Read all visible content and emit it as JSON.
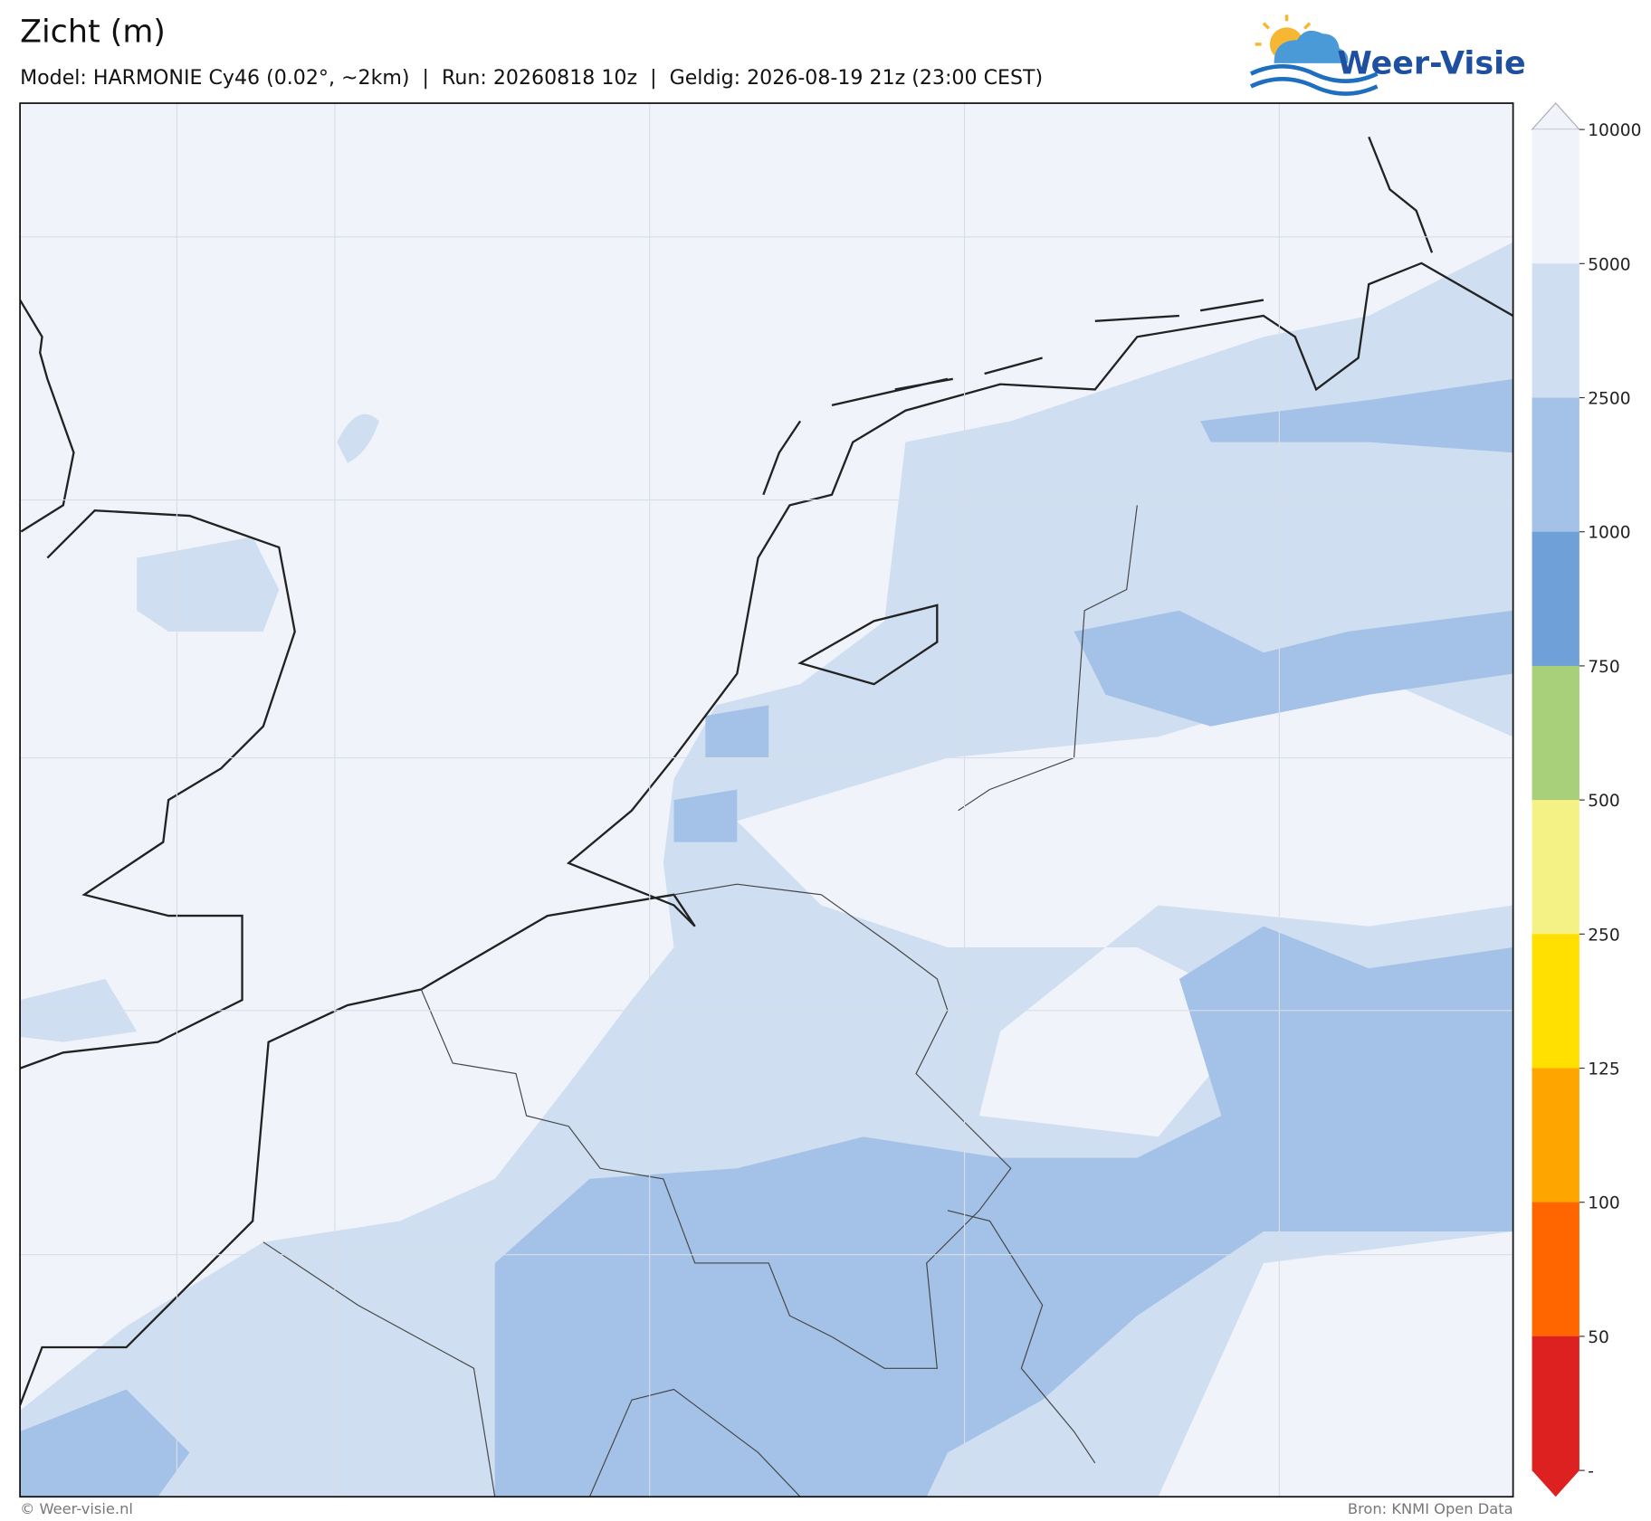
{
  "header": {
    "title": "Zicht (m)",
    "subtitle": "Model: HARMONIE Cy46 (0.02°, ~2km)  |  Run: 20260818 10z  |  Geldig: 2026-08-19 21z (23:00 CEST)"
  },
  "logo": {
    "text": "Weer-Visie"
  },
  "colorbar": {
    "labels": [
      10000,
      5000,
      2500,
      1000,
      750,
      500,
      250,
      125,
      100,
      50,
      "-"
    ],
    "colors": [
      "#f0f4fa",
      "#cfdef0",
      "#a4c2e8",
      "#6fa0d8",
      "#a8cf7a",
      "#f5f285",
      "#ffe000",
      "#ffa500",
      "#ff6600",
      "#dd2020"
    ],
    "over_color": "#f0f4fa",
    "under_color": "#dd2020"
  },
  "footer": {
    "left": "© Weer-visie.nl",
    "right": "Bron: KNMI Open Data"
  }
}
